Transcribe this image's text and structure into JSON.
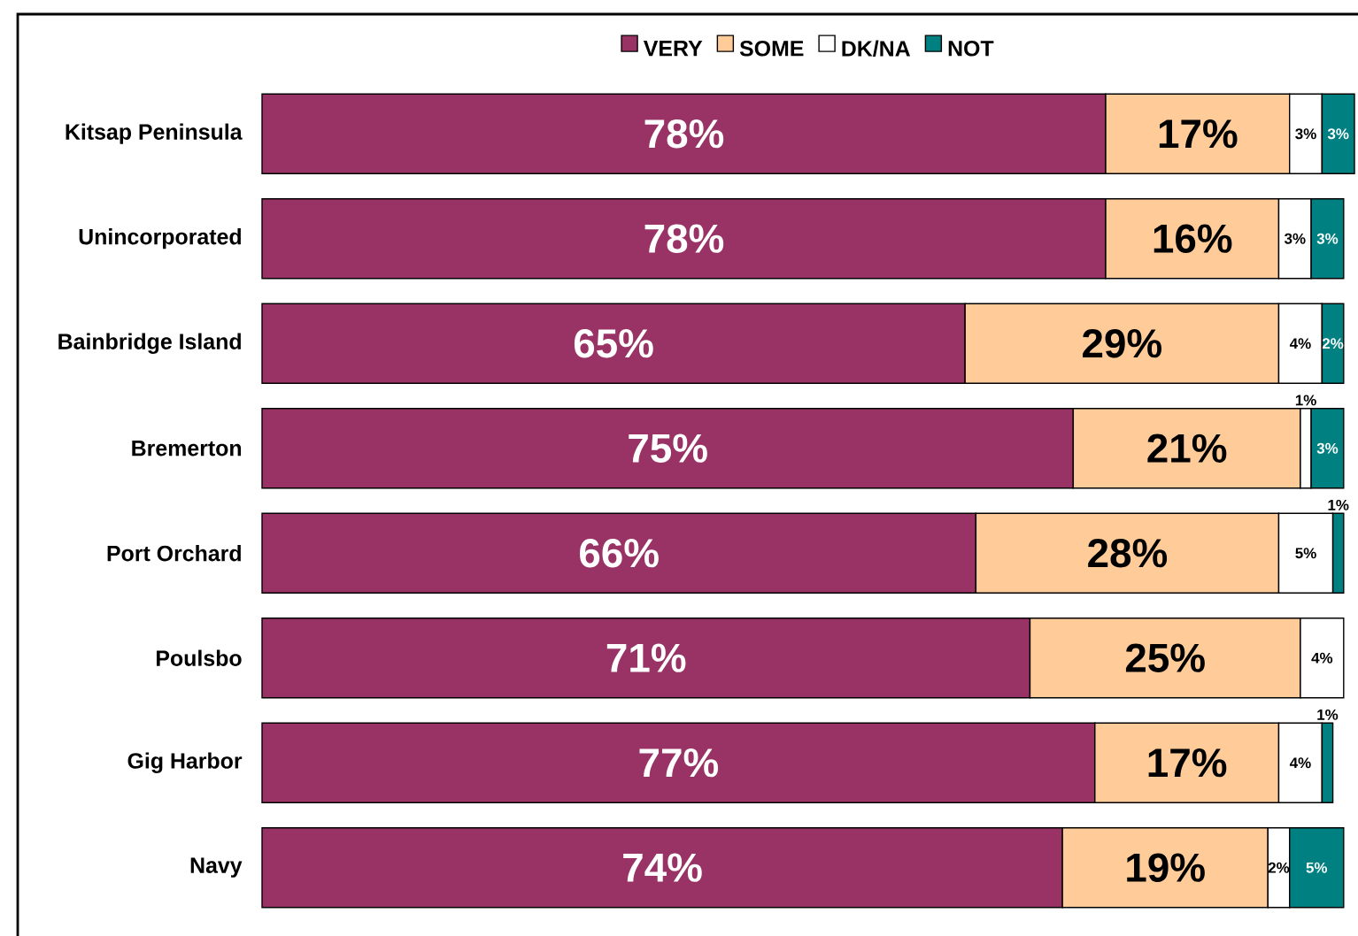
{
  "chart_data": {
    "type": "bar",
    "orientation": "horizontal",
    "stacked": true,
    "categories": [
      "Kitsap Peninsula",
      "Unincorporated",
      "Bainbridge Island",
      "Bremerton",
      "Port Orchard",
      "Poulsbo",
      "Gig Harbor",
      "Navy"
    ],
    "series": [
      {
        "name": "VERY",
        "color": "#993366",
        "values": [
          78,
          78,
          65,
          75,
          66,
          71,
          77,
          74
        ],
        "value_labels": [
          "78%",
          "78%",
          "65%",
          "75%",
          "66%",
          "71%",
          "77%",
          "74%"
        ]
      },
      {
        "name": "SOME",
        "color": "#ffcc99",
        "values": [
          17,
          16,
          29,
          21,
          28,
          25,
          17,
          19
        ],
        "value_labels": [
          "17%",
          "16%",
          "29%",
          "21%",
          "28%",
          "25%",
          "17%",
          "19%"
        ]
      },
      {
        "name": "DK/NA",
        "color": "#ffffff",
        "values": [
          3,
          3,
          4,
          1,
          5,
          4,
          4,
          2
        ],
        "value_labels": [
          "3%",
          "3%",
          "4%",
          "1%",
          "5%",
          "4%",
          "4%",
          "2%"
        ]
      },
      {
        "name": "NOT",
        "color": "#008080",
        "values": [
          3,
          3,
          2,
          3,
          1,
          null,
          1,
          5
        ],
        "value_labels": [
          "3%",
          "3%",
          "2%",
          "3%",
          "1%",
          null,
          "1%",
          "5%"
        ]
      }
    ],
    "xlim": [
      0,
      101
    ],
    "legend": "top",
    "tick_labels": "y"
  }
}
